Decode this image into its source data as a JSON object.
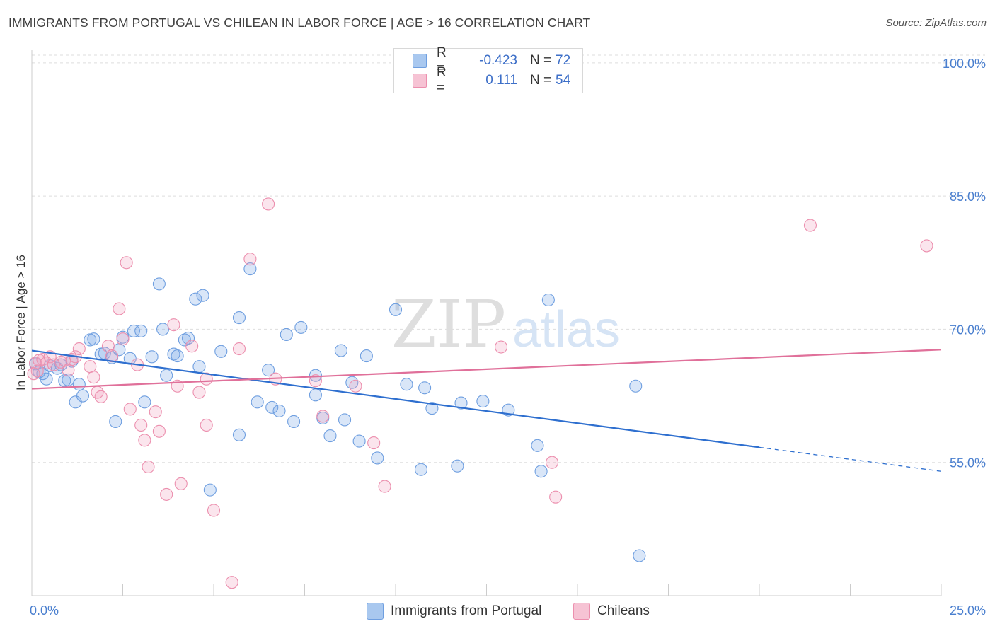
{
  "title": "IMMIGRANTS FROM PORTUGAL VS CHILEAN IN LABOR FORCE | AGE > 16 CORRELATION CHART",
  "source": "Source: ZipAtlas.com",
  "watermark": {
    "zip": "ZIP",
    "atlas": "atlas"
  },
  "legend": {
    "rows": [
      {
        "r_label": "R =",
        "r_value": "-0.423",
        "n_label": "N =",
        "n_value": "72",
        "color": "#a9c8ef",
        "stroke": "#6f9fe0"
      },
      {
        "r_label": "R =",
        "r_value": "0.111",
        "n_label": "N =",
        "n_value": "54",
        "color": "#f6c3d4",
        "stroke": "#ec8fae"
      }
    ]
  },
  "colors": {
    "blue": "#6f9fe0",
    "blue_fill": "rgba(120,165,230,0.28)",
    "blue_line": "#2e6fcf",
    "pink": "#ec8fae",
    "pink_fill": "rgba(240,160,190,0.28)",
    "pink_line": "#e0709a",
    "axis_text": "#4a7fcf",
    "grid": "#dddddd"
  },
  "chart_data": {
    "type": "scatter",
    "title": "IMMIGRANTS FROM PORTUGAL VS CHILEAN IN LABOR FORCE | AGE > 16 CORRELATION CHART",
    "xlabel": "",
    "ylabel": "In Labor Force | Age > 16",
    "xlim": [
      0,
      25
    ],
    "ylim": [
      40,
      101.5
    ],
    "x_tick_labels": [
      "0.0%",
      "25.0%"
    ],
    "y_ticks": [
      55,
      70,
      85,
      100
    ],
    "y_tick_labels": [
      "55.0%",
      "70.0%",
      "85.0%",
      "100.0%"
    ],
    "grid": true,
    "legend_position": "top-center",
    "series": [
      {
        "name": "Immigrants from Portugal",
        "color": "#6f9fe0",
        "trend": {
          "x": [
            0,
            20
          ],
          "y": [
            67.6,
            56.7
          ],
          "dashed_extension_to_x": 25,
          "dashed_end_y": 54.0
        },
        "points": [
          [
            0.1,
            66.1
          ],
          [
            0.2,
            65.2
          ],
          [
            0.3,
            65.0
          ],
          [
            0.4,
            64.4
          ],
          [
            0.5,
            65.9
          ],
          [
            0.7,
            65.6
          ],
          [
            0.8,
            66.0
          ],
          [
            0.9,
            64.2
          ],
          [
            1.0,
            64.3
          ],
          [
            1.1,
            66.4
          ],
          [
            1.2,
            61.8
          ],
          [
            1.3,
            63.8
          ],
          [
            1.4,
            62.5
          ],
          [
            1.6,
            68.8
          ],
          [
            1.7,
            68.9
          ],
          [
            1.9,
            67.2
          ],
          [
            2.0,
            67.3
          ],
          [
            2.2,
            66.8
          ],
          [
            2.3,
            59.6
          ],
          [
            2.4,
            67.7
          ],
          [
            2.5,
            69.1
          ],
          [
            2.7,
            66.7
          ],
          [
            2.8,
            69.8
          ],
          [
            3.0,
            69.8
          ],
          [
            3.1,
            61.8
          ],
          [
            3.3,
            66.9
          ],
          [
            3.5,
            75.1
          ],
          [
            3.6,
            70.0
          ],
          [
            3.7,
            64.8
          ],
          [
            3.9,
            67.2
          ],
          [
            4.0,
            67.0
          ],
          [
            4.2,
            68.8
          ],
          [
            4.3,
            69.0
          ],
          [
            4.5,
            73.4
          ],
          [
            4.6,
            65.8
          ],
          [
            4.7,
            73.8
          ],
          [
            4.9,
            51.9
          ],
          [
            5.2,
            67.5
          ],
          [
            5.7,
            71.3
          ],
          [
            5.7,
            58.1
          ],
          [
            6.0,
            76.8
          ],
          [
            6.2,
            61.8
          ],
          [
            6.5,
            65.4
          ],
          [
            6.6,
            61.2
          ],
          [
            6.8,
            60.8
          ],
          [
            7.0,
            69.4
          ],
          [
            7.2,
            59.6
          ],
          [
            7.4,
            70.2
          ],
          [
            7.8,
            64.8
          ],
          [
            7.8,
            62.6
          ],
          [
            8.0,
            60.0
          ],
          [
            8.2,
            58.0
          ],
          [
            8.5,
            67.6
          ],
          [
            8.6,
            59.8
          ],
          [
            8.8,
            64.0
          ],
          [
            9.0,
            57.4
          ],
          [
            9.2,
            67.0
          ],
          [
            9.5,
            55.5
          ],
          [
            10.0,
            72.2
          ],
          [
            10.3,
            63.8
          ],
          [
            10.7,
            54.2
          ],
          [
            10.8,
            63.4
          ],
          [
            11.0,
            61.1
          ],
          [
            11.7,
            54.6
          ],
          [
            11.8,
            61.7
          ],
          [
            12.4,
            61.9
          ],
          [
            13.1,
            60.9
          ],
          [
            13.9,
            56.9
          ],
          [
            14.0,
            54.0
          ],
          [
            14.2,
            73.3
          ],
          [
            16.6,
            63.6
          ],
          [
            16.7,
            44.5
          ]
        ]
      },
      {
        "name": "Chileans",
        "color": "#ec8fae",
        "trend": {
          "x": [
            0,
            25
          ],
          "y": [
            63.3,
            67.7
          ]
        },
        "points": [
          [
            0.1,
            66.2
          ],
          [
            0.15,
            65.3
          ],
          [
            0.2,
            66.5
          ],
          [
            0.3,
            66.6
          ],
          [
            0.4,
            66.2
          ],
          [
            0.5,
            66.9
          ],
          [
            0.6,
            66.0
          ],
          [
            0.8,
            66.3
          ],
          [
            0.9,
            66.5
          ],
          [
            1.0,
            65.4
          ],
          [
            1.1,
            66.6
          ],
          [
            1.2,
            66.9
          ],
          [
            1.3,
            67.8
          ],
          [
            1.6,
            65.8
          ],
          [
            1.7,
            64.6
          ],
          [
            1.8,
            62.9
          ],
          [
            1.9,
            62.4
          ],
          [
            2.1,
            68.1
          ],
          [
            2.2,
            67.0
          ],
          [
            2.4,
            72.3
          ],
          [
            2.5,
            68.9
          ],
          [
            2.6,
            77.5
          ],
          [
            2.7,
            61.0
          ],
          [
            2.9,
            66.0
          ],
          [
            3.0,
            59.2
          ],
          [
            3.1,
            57.5
          ],
          [
            3.2,
            54.5
          ],
          [
            3.4,
            60.7
          ],
          [
            3.5,
            58.5
          ],
          [
            3.7,
            51.4
          ],
          [
            3.9,
            70.5
          ],
          [
            4.0,
            63.6
          ],
          [
            4.1,
            52.6
          ],
          [
            4.4,
            68.1
          ],
          [
            4.6,
            62.9
          ],
          [
            4.8,
            64.4
          ],
          [
            4.8,
            59.2
          ],
          [
            5.0,
            49.6
          ],
          [
            5.5,
            41.5
          ],
          [
            5.7,
            67.8
          ],
          [
            6.0,
            77.9
          ],
          [
            6.5,
            84.1
          ],
          [
            6.7,
            64.4
          ],
          [
            7.8,
            64.2
          ],
          [
            8.0,
            60.2
          ],
          [
            8.9,
            63.6
          ],
          [
            9.4,
            57.2
          ],
          [
            9.7,
            52.3
          ],
          [
            12.9,
            68.0
          ],
          [
            14.3,
            55.0
          ],
          [
            14.4,
            51.1
          ],
          [
            21.4,
            81.7
          ],
          [
            24.6,
            79.4
          ],
          [
            0.05,
            65.0
          ]
        ]
      }
    ]
  },
  "bottom_legend": [
    {
      "label": "Immigrants from Portugal",
      "color": "#a9c8ef",
      "stroke": "#6f9fe0"
    },
    {
      "label": "Chileans",
      "color": "#f6c3d4",
      "stroke": "#ec8fae"
    }
  ]
}
